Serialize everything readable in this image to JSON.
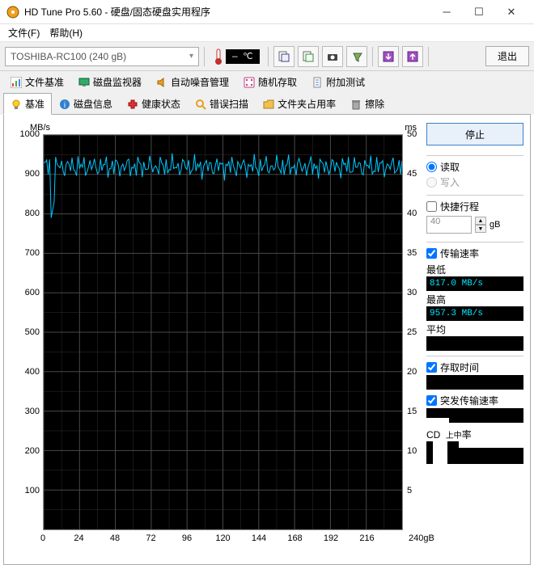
{
  "window": {
    "title": "HD Tune Pro 5.60 - 硬盘/固态硬盘实用程序",
    "menus": {
      "file": "文件(F)",
      "help": "帮助(H)"
    }
  },
  "toolbar": {
    "drive": "TOSHIBA-RC100 (240 gB)",
    "temp": "— ℃",
    "exit": "退出"
  },
  "tabs_row1": {
    "t0": "文件基准",
    "t1": "磁盘监视器",
    "t2": "自动噪音管理",
    "t3": "随机存取",
    "t4": "附加测试"
  },
  "tabs_row2": {
    "t0": "基准",
    "t1": "磁盘信息",
    "t2": "健康状态",
    "t3": "错误扫描",
    "t4": "文件夹占用率",
    "t5": "擦除"
  },
  "chart": {
    "y1label": "MB/s",
    "y2label": "ms",
    "xunit": "240gB",
    "y1ticks": [
      1000,
      900,
      800,
      700,
      600,
      500,
      400,
      300,
      200,
      100
    ],
    "y2ticks": [
      50,
      45,
      40,
      35,
      30,
      25,
      20,
      15,
      10,
      5
    ],
    "xticks": [
      0,
      24,
      48,
      72,
      96,
      120,
      144,
      168,
      192,
      216
    ],
    "xmax": 240,
    "plot_bg": "#000000",
    "grid_color": "#303030",
    "line_color": "#00c8ff",
    "line_mean": 920,
    "line_amp": 30,
    "line_spike_x": 6,
    "line_spike_y": 810
  },
  "side": {
    "stop": "停止",
    "read": "读取",
    "write": "写入",
    "quick": "快捷行程",
    "quick_val": "40",
    "quick_unit": "gB",
    "transfer": "传输速率",
    "min_label": "最低",
    "min_val": " 817.0 MB/s",
    "max_label": "最高",
    "max_val": " 957.3 MB/s",
    "avg_label": "平均",
    "access": "存取时间",
    "burst": "突发传输速率",
    "cpu_label": "CPU占用率"
  }
}
